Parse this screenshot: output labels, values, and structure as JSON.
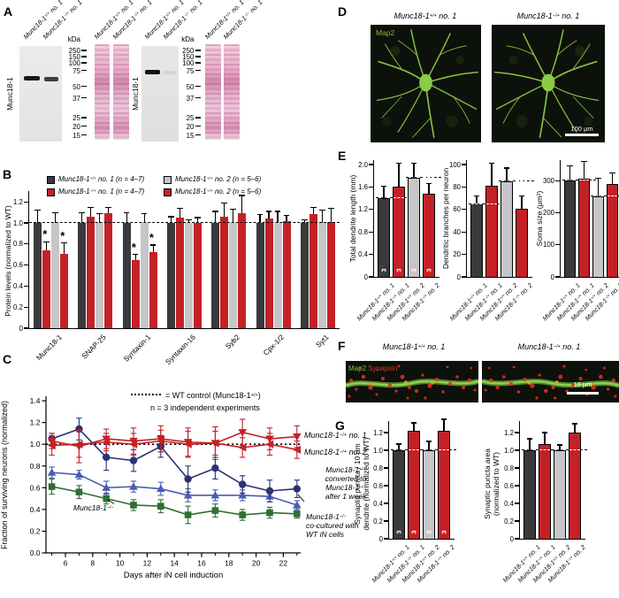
{
  "panel_a": {
    "letter": "A",
    "antibody": "Munc18-1",
    "kda": "kDa",
    "ladder": [
      "250",
      "150",
      "100",
      "75",
      "50",
      "37",
      "25",
      "20",
      "15"
    ],
    "lane_labels": [
      [
        "Munc18-1^{+/+} no. 1",
        "Munc18-1^{−/+} no. 1"
      ],
      [
        "Munc18-1^{+/+} no. 1",
        "Munc18-1^{−/+} no. 1"
      ],
      [
        "Munc18-1^{+/+} no. 1",
        "Munc18-1^{−/−} no. 1"
      ],
      [
        "Munc18-1^{+/+} no. 1",
        "Munc18-1^{−/−} no. 1"
      ]
    ]
  },
  "panel_b": {
    "letter": "B",
    "legend": [
      {
        "label": "Munc18-1^{+/+} no. 1 (n = 4–7)",
        "color": "#3a3a3c"
      },
      {
        "label": "Munc18-1^{−/+} no. 1 (n = 4–7)",
        "color": "#c42126"
      },
      {
        "label": "Munc18-1^{+/+} no. 2 (n = 5–6)",
        "color": "#c6c6c8"
      },
      {
        "label": "Munc18-1^{−/+} no. 2 (n = 5–6)",
        "color": "#c42126"
      }
    ]
  },
  "panel_c": {
    "letter": "C",
    "note_line1": "= WT control (Munc18-1^{+/+})",
    "note_line2": "n = 3 independent experiments",
    "labels": {
      "s1": "Munc18-1^{−/+} no. 1",
      "s2": "Munc18-1^{−/+} no. 2",
      "s3": "Munc18-1^{+/+}\nconverted to\nMunc18-1^{−/−}\nafter 1 week",
      "s4": "Munc18-1^{−/−}\nco-cultured with\nWT iN cells",
      "s5": "Munc18-1^{−/−}"
    }
  },
  "panel_d": {
    "letter": "D",
    "titles": [
      "Munc18-1^{+/+} no. 1",
      "Munc18-1^{−/+} no. 1"
    ],
    "stain": "Map2",
    "scalebar": "100 μm"
  },
  "panel_e": {
    "letter": "E"
  },
  "panel_f": {
    "letter": "F",
    "titles": [
      "Munc18-1^{+/+} no. 1",
      "Munc18-1^{−/+} no. 1"
    ],
    "stains": [
      "Map2",
      "Synapsin"
    ],
    "scalebar": "10 μm"
  },
  "panel_g": {
    "letter": "G"
  },
  "genotypes": [
    "Munc18-1^{+/+} no. 1",
    "Munc18-1^{−/+} no. 1",
    "Munc18-1^{+/+} no. 2",
    "Munc18-1^{−/+} no. 2"
  ],
  "chart_data": [
    {
      "id": "B",
      "type": "bar",
      "ylabel": "Protein levels (normalized to WT)",
      "ylim": [
        0,
        1.25
      ],
      "yticks": [
        "0",
        "0.2",
        "0.4",
        "0.6",
        "0.8",
        "1.0",
        "1.2"
      ],
      "ref_line": 1.0,
      "categories": [
        "Munc18-1",
        "SNAP-25",
        "Syntaxin-1",
        "Syntaxin-16",
        "Syb2",
        "Cpx-1/2",
        "Syt1"
      ],
      "series": [
        {
          "name": "Munc18-1^{+/+} no. 1 (n = 4–7)",
          "color": "#3a3a3c",
          "values": [
            1.0,
            1.0,
            1.0,
            1.0,
            1.0,
            1.0,
            1.0
          ],
          "errors": [
            0.12,
            0.1,
            0.1,
            0.06,
            0.11,
            0.08,
            0.03
          ]
        },
        {
          "name": "Munc18-1^{−/+} no. 1 (n = 4–7)",
          "color": "#c42126",
          "values": [
            0.74,
            1.06,
            0.65,
            1.05,
            1.06,
            1.04,
            1.08
          ],
          "errors": [
            0.08,
            0.09,
            0.05,
            0.09,
            0.13,
            0.07,
            0.07
          ],
          "sig": [
            1,
            0,
            1,
            0,
            0,
            0,
            0
          ]
        },
        {
          "name": "Munc18-1^{+/+} no. 2 (n = 5–6)",
          "color": "#c6c6c8",
          "values": [
            1.0,
            1.0,
            1.0,
            1.0,
            1.0,
            1.0,
            1.0
          ],
          "errors": [
            0.1,
            0.09,
            0.09,
            0.03,
            0.13,
            0.11,
            0.12
          ]
        },
        {
          "name": "Munc18-1^{−/+} no. 2 (n = 5–6)",
          "color": "#c42126",
          "values": [
            0.71,
            1.09,
            0.72,
            1.0,
            1.09,
            1.02,
            1.01
          ],
          "errors": [
            0.1,
            0.06,
            0.07,
            0.05,
            0.17,
            0.05,
            0.13
          ],
          "sig": [
            1,
            0,
            1,
            0,
            0,
            0,
            0
          ]
        }
      ]
    },
    {
      "id": "C",
      "type": "line",
      "xlabel": "Days after iN cell induction",
      "ylabel": "Fraction of surviving neurons (normalized)",
      "x": [
        5,
        7,
        9,
        11,
        13,
        15,
        17,
        19,
        21,
        23
      ],
      "xticks": [
        6,
        8,
        10,
        12,
        14,
        16,
        18,
        20,
        22
      ],
      "yticks": [
        "0.0",
        "0.2",
        "0.4",
        "0.6",
        "0.8",
        "1.0",
        "1.2",
        "1.4"
      ],
      "ref_line": 1.0,
      "series": [
        {
          "name": "Munc18-1^{−/+} no. 1",
          "marker": "triangle-down",
          "color": "#c42126",
          "values": [
            1.03,
            0.98,
            1.05,
            1.03,
            1.05,
            1.02,
            1.01,
            1.11,
            1.05,
            1.07
          ],
          "errors": [
            0.07,
            0.15,
            0.09,
            0.12,
            0.12,
            0.13,
            0.11,
            0.12,
            0.1,
            0.1
          ]
        },
        {
          "name": "Munc18-1^{−/+} no. 2",
          "marker": "triangle-left",
          "color": "#c42126",
          "values": [
            0.99,
            1.0,
            1.02,
            1.0,
            1.03,
            1.0,
            1.01,
            0.97,
            1.0,
            0.95
          ],
          "errors": [
            0.09,
            0.12,
            0.08,
            0.1,
            0.1,
            0.12,
            0.15,
            0.09,
            0.1,
            0.08
          ]
        },
        {
          "name": "Munc18-1^{+/+} converted to Munc18-1^{−/−} after 1 week",
          "marker": "circle",
          "color": "#2b3173",
          "values": [
            1.05,
            1.14,
            0.88,
            0.85,
            0.98,
            0.68,
            0.78,
            0.63,
            0.57,
            0.59
          ],
          "errors": [
            0.05,
            0.1,
            0.12,
            0.1,
            0.1,
            0.12,
            0.1,
            0.08,
            0.1,
            0.08
          ]
        },
        {
          "name": "Munc18-1^{−/−} co-cultured with WT iN cells",
          "marker": "triangle-up",
          "color": "#4a5cb2",
          "values": [
            0.74,
            0.72,
            0.6,
            0.61,
            0.59,
            0.53,
            0.53,
            0.53,
            0.52,
            0.44
          ],
          "errors": [
            0.05,
            0.04,
            0.06,
            0.05,
            0.06,
            0.06,
            0.05,
            0.05,
            0.05,
            0.04
          ]
        },
        {
          "name": "Munc18-1^{−/−}",
          "marker": "square",
          "color": "#2d7032",
          "values": [
            0.61,
            0.56,
            0.5,
            0.44,
            0.43,
            0.35,
            0.39,
            0.35,
            0.37,
            0.36
          ],
          "errors": [
            0.07,
            0.06,
            0.05,
            0.05,
            0.06,
            0.08,
            0.06,
            0.05,
            0.05,
            0.04
          ]
        }
      ]
    },
    {
      "id": "E1",
      "type": "bar",
      "ylabel": "Total dendrite length (mm)",
      "yticks": [
        "0",
        "0.4",
        "0.8",
        "1.2",
        "1.6",
        "2.0"
      ],
      "categories": [
        "Munc18-1^{+/+} no. 1",
        "Munc18-1^{−/+} no. 1",
        "Munc18-1^{+/+} no. 2",
        "Munc18-1^{−/+} no. 2"
      ],
      "values": [
        1.4,
        1.61,
        1.77,
        1.48
      ],
      "errors": [
        0.22,
        0.41,
        0.25,
        0.18
      ],
      "bar_colors": [
        "#3a3a3c",
        "#c42126",
        "#c6c6c8",
        "#c42126"
      ],
      "n_labels": [
        "3",
        "3",
        "3",
        "3"
      ],
      "ref_dashes": [
        {
          "from": 0,
          "to": 1,
          "value": 1.4
        },
        {
          "from": 2,
          "to": 3,
          "value": 1.77
        }
      ]
    },
    {
      "id": "E2",
      "type": "bar",
      "ylabel": "Dendritic branches per neuron",
      "yticks": [
        "0",
        "20",
        "40",
        "60",
        "80",
        "100"
      ],
      "categories": [
        "Munc18-1^{+/+} no. 1",
        "Munc18-1^{−/+} no. 1",
        "Munc18-1^{+/+} no. 2",
        "Munc18-1^{−/+} no. 2"
      ],
      "values": [
        65,
        81,
        85,
        61
      ],
      "errors": [
        7,
        20,
        12,
        11
      ],
      "bar_colors": [
        "#3a3a3c",
        "#c42126",
        "#c6c6c8",
        "#c42126"
      ],
      "ref_dashes": [
        {
          "from": 0,
          "to": 1,
          "value": 65
        },
        {
          "from": 2,
          "to": 3,
          "value": 85
        }
      ]
    },
    {
      "id": "E3",
      "type": "bar",
      "ylabel": "Soma size (μm^{2})",
      "yticks": [
        "0",
        "100",
        "200",
        "300"
      ],
      "categories": [
        "Munc18-1^{+/+} no. 1",
        "Munc18-1^{−/+} no. 1",
        "Munc18-1^{+/+} no. 2",
        "Munc18-1^{−/+} no. 2"
      ],
      "values": [
        302,
        306,
        251,
        289
      ],
      "errors": [
        45,
        55,
        57,
        36
      ],
      "bar_colors": [
        "#3a3a3c",
        "#c42126",
        "#c6c6c8",
        "#c42126"
      ],
      "ref_dashes": [
        {
          "from": 0,
          "to": 1,
          "value": 302
        },
        {
          "from": 2,
          "to": 3,
          "value": 251
        }
      ]
    },
    {
      "id": "G1",
      "type": "bar",
      "ylabel": "Synaptic puncta / 10 μm\ndendrite (normalized to WT)",
      "yticks": [
        "0",
        "0.2",
        "0.4",
        "0.6",
        "0.8",
        "1.0",
        "1.2"
      ],
      "categories": [
        "Munc18-1^{+/+} no. 1",
        "Munc18-1^{−/+} no. 1",
        "Munc18-1^{+/+} no. 2",
        "Munc18-1^{−/+} no. 2"
      ],
      "values": [
        1.0,
        1.22,
        1.0,
        1.22
      ],
      "errors": [
        0.07,
        0.09,
        0.1,
        0.13
      ],
      "bar_colors": [
        "#3a3a3c",
        "#c42126",
        "#c6c6c8",
        "#c42126"
      ],
      "n_labels": [
        "3",
        "3",
        "3",
        "3"
      ],
      "ref_dashes": [
        {
          "from": 0,
          "to": 1,
          "value": 1.0
        },
        {
          "from": 2,
          "to": 3,
          "value": 1.0
        }
      ]
    },
    {
      "id": "G2",
      "type": "bar",
      "ylabel": "Synaptic puncta area\n(normalized to WT)",
      "yticks": [
        "0",
        "0.2",
        "0.4",
        "0.6",
        "0.8",
        "1.0",
        "1.2"
      ],
      "categories": [
        "Munc18-1^{+/+} no. 1",
        "Munc18-1^{−/+} no. 1",
        "Munc18-1^{+/+} no. 2",
        "Munc18-1^{−/+} no. 2"
      ],
      "values": [
        1.0,
        1.07,
        1.0,
        1.2
      ],
      "errors": [
        0.13,
        0.13,
        0.06,
        0.1
      ],
      "bar_colors": [
        "#3a3a3c",
        "#c42126",
        "#c6c6c8",
        "#c42126"
      ],
      "ref_dashes": [
        {
          "from": 0,
          "to": 1,
          "value": 1.0
        },
        {
          "from": 2,
          "to": 3,
          "value": 1.0
        }
      ]
    }
  ]
}
